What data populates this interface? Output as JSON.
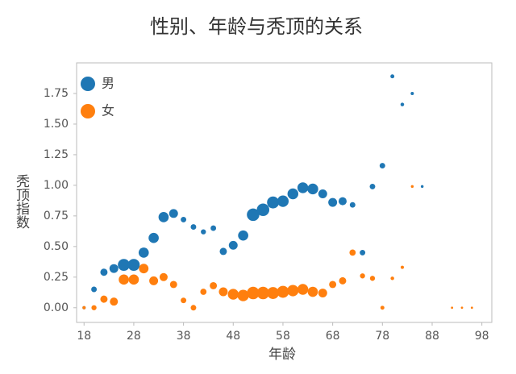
{
  "chart_data": {
    "type": "scatter",
    "title": "性别、年龄与秃顶的关系",
    "x_label": "年龄",
    "y_label": "秃顶指数",
    "xlim": [
      16.5,
      100
    ],
    "xticks": [
      18,
      28,
      38,
      48,
      58,
      68,
      78,
      88,
      98
    ],
    "ylim": [
      -0.12,
      2.0
    ],
    "yticks": [
      {
        "value": 0,
        "label": "0.00"
      },
      0.25,
      {
        "value": 0.5,
        "label": "0.50"
      },
      0.75,
      {
        "value": 1,
        "label": "1.00"
      },
      1.25,
      {
        "value": 1.5,
        "label": "1.50"
      },
      1.75
    ],
    "grid": false,
    "legend_position": "upper-left",
    "series": [
      {
        "name": "男",
        "color": "#1f77b4",
        "x": [
          18,
          20,
          22,
          24,
          26,
          28,
          30,
          32,
          34,
          36,
          38,
          40,
          42,
          44,
          46,
          48,
          50,
          52,
          54,
          56,
          58,
          60,
          62,
          64,
          66,
          68,
          70,
          72,
          74,
          76,
          78,
          80,
          82,
          84,
          86
        ],
        "values": [
          0.0,
          0.15,
          0.29,
          0.32,
          0.35,
          0.35,
          0.45,
          0.57,
          0.74,
          0.77,
          0.72,
          0.66,
          0.62,
          0.65,
          0.46,
          0.51,
          0.59,
          0.76,
          0.8,
          0.86,
          0.87,
          0.93,
          0.98,
          0.97,
          0.93,
          0.86,
          0.87,
          0.84,
          0.45,
          0.99,
          1.16,
          1.89,
          1.66,
          1.75,
          0.99
        ],
        "sizes": [
          4,
          12,
          20,
          30,
          55,
          55,
          40,
          40,
          40,
          30,
          12,
          12,
          10,
          12,
          20,
          30,
          40,
          60,
          60,
          55,
          50,
          45,
          45,
          45,
          30,
          30,
          25,
          12,
          12,
          12,
          12,
          6,
          5,
          4,
          3
        ]
      },
      {
        "name": "女",
        "color": "#ff7f0e",
        "x": [
          18,
          20,
          22,
          24,
          26,
          28,
          30,
          32,
          34,
          36,
          38,
          40,
          42,
          44,
          46,
          48,
          50,
          52,
          54,
          56,
          58,
          60,
          62,
          64,
          66,
          68,
          70,
          72,
          74,
          76,
          78,
          80,
          82,
          84,
          92,
          94,
          96
        ],
        "values": [
          0.0,
          0.0,
          0.07,
          0.05,
          0.23,
          0.23,
          0.32,
          0.22,
          0.25,
          0.19,
          0.06,
          0.0,
          0.13,
          0.18,
          0.13,
          0.11,
          0.1,
          0.12,
          0.12,
          0.12,
          0.13,
          0.14,
          0.15,
          0.13,
          0.12,
          0.19,
          0.22,
          0.45,
          0.26,
          0.24,
          0.0,
          0.24,
          0.33,
          0.99,
          0,
          0,
          0
        ],
        "sizes": [
          4,
          10,
          20,
          25,
          40,
          40,
          35,
          30,
          25,
          20,
          12,
          12,
          15,
          20,
          30,
          45,
          50,
          60,
          60,
          55,
          55,
          50,
          45,
          40,
          30,
          20,
          20,
          15,
          10,
          10,
          6,
          5,
          4,
          3,
          2,
          2,
          2
        ]
      }
    ]
  }
}
